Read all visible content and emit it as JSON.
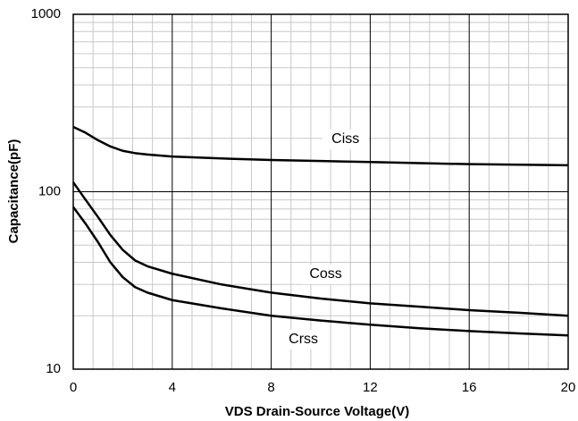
{
  "chart_data": {
    "type": "line",
    "x_label": "VDS Drain-Source Voltage(V)",
    "y_label": "Capacitance(pF)",
    "xlim": [
      0,
      20
    ],
    "xticks": [
      0,
      4,
      8,
      12,
      16,
      20
    ],
    "xminorticks": [
      0.8,
      1.6,
      2.4,
      3.2,
      4.8,
      5.6,
      6.4,
      7.2,
      8.8,
      9.6,
      10.4,
      11.2,
      12.8,
      13.6,
      14.4,
      15.2,
      16.8,
      17.6,
      18.4,
      19.2
    ],
    "ylim": [
      10,
      1000
    ],
    "yticks": [
      10,
      100,
      1000
    ],
    "yminorticks": [
      20,
      30,
      40,
      50,
      60,
      70,
      80,
      90,
      200,
      300,
      400,
      500,
      600,
      700,
      800,
      900
    ],
    "ylog": true,
    "grid": true,
    "x": [
      0,
      0.5,
      1,
      1.5,
      2,
      2.5,
      3,
      4,
      6,
      8,
      10,
      12,
      14,
      16,
      18,
      20
    ],
    "series": [
      {
        "name": "Ciss",
        "color": "#000000",
        "values": [
          232,
          215,
          195,
          180,
          170,
          165,
          162,
          158,
          154,
          151,
          149,
          147,
          145,
          143,
          142,
          141
        ]
      },
      {
        "name": "Coss",
        "color": "#000000",
        "values": [
          113,
          90,
          72,
          57,
          47,
          41,
          38,
          34.5,
          30,
          27,
          25,
          23.5,
          22.5,
          21.5,
          20.8,
          20
        ]
      },
      {
        "name": "Crss",
        "color": "#000000",
        "values": [
          82,
          66,
          52,
          40,
          33,
          29,
          27,
          24.5,
          22,
          20,
          18.8,
          17.8,
          17,
          16.4,
          15.9,
          15.5
        ]
      }
    ]
  }
}
